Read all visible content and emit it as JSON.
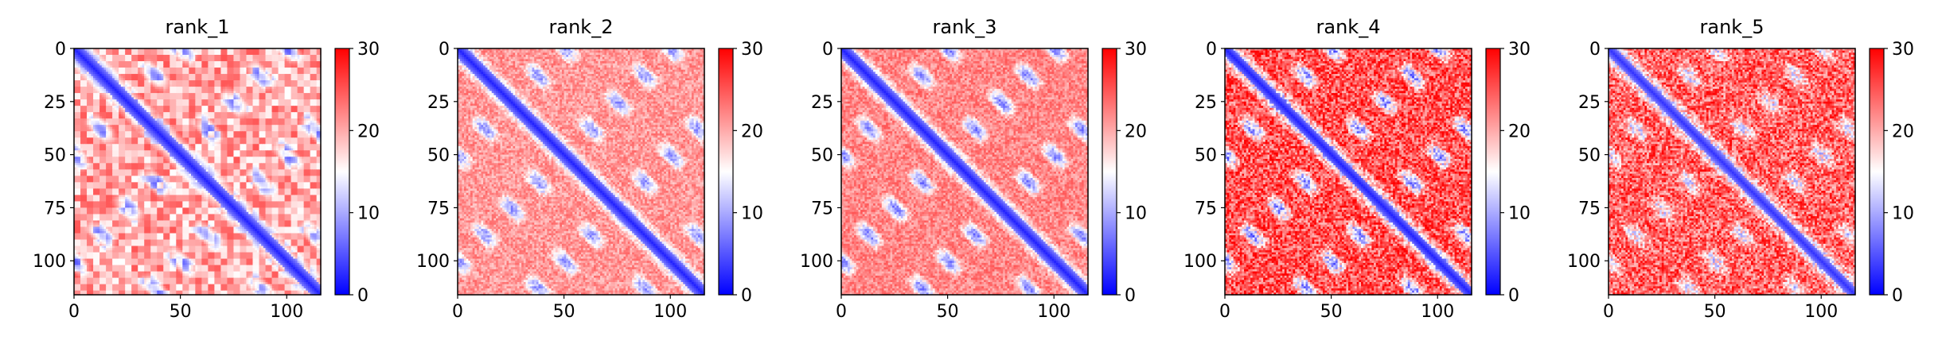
{
  "figure": {
    "panels": [
      {
        "title": "rank_1"
      },
      {
        "title": "rank_2"
      },
      {
        "title": "rank_3"
      },
      {
        "title": "rank_4"
      },
      {
        "title": "rank_5"
      }
    ]
  },
  "chart_data": [
    {
      "type": "heatmap",
      "title": "rank_1",
      "xlabel": "",
      "ylabel": "",
      "matrix_size": 116,
      "xlim": [
        0,
        116
      ],
      "ylim": [
        116,
        0
      ],
      "xticks": [
        0,
        50,
        100
      ],
      "yticks": [
        0,
        25,
        50,
        75,
        100
      ],
      "colorbar": {
        "min": 0,
        "max": 30,
        "ticks": [
          0,
          10,
          20,
          30
        ]
      },
      "colormap": "bwr",
      "colors": {
        "low": "#0000ff",
        "mid": "#ffffff",
        "high": "#ff0000"
      },
      "pattern": {
        "diagonal_value": 2,
        "diagonal_width": 4,
        "background_value": 20,
        "offdiag_blob_value": 10,
        "blob_period": 25,
        "texture": "blocky"
      }
    },
    {
      "type": "heatmap",
      "title": "rank_2",
      "xlabel": "",
      "ylabel": "",
      "matrix_size": 116,
      "xlim": [
        0,
        116
      ],
      "ylim": [
        116,
        0
      ],
      "xticks": [
        0,
        50,
        100
      ],
      "yticks": [
        0,
        25,
        50,
        75,
        100
      ],
      "colorbar": {
        "min": 0,
        "max": 30,
        "ticks": [
          0,
          10,
          20,
          30
        ]
      },
      "colormap": "bwr",
      "colors": {
        "low": "#0000ff",
        "mid": "#ffffff",
        "high": "#ff0000"
      },
      "pattern": {
        "diagonal_value": 2,
        "diagonal_width": 4,
        "background_value": 21,
        "offdiag_blob_value": 9,
        "blob_period": 25,
        "texture": "smooth"
      }
    },
    {
      "type": "heatmap",
      "title": "rank_3",
      "xlabel": "",
      "ylabel": "",
      "matrix_size": 116,
      "xlim": [
        0,
        116
      ],
      "ylim": [
        116,
        0
      ],
      "xticks": [
        0,
        50,
        100
      ],
      "yticks": [
        0,
        25,
        50,
        75,
        100
      ],
      "colorbar": {
        "min": 0,
        "max": 30,
        "ticks": [
          0,
          10,
          20,
          30
        ]
      },
      "colormap": "bwr",
      "colors": {
        "low": "#0000ff",
        "mid": "#ffffff",
        "high": "#ff0000"
      },
      "pattern": {
        "diagonal_value": 2,
        "diagonal_width": 4,
        "background_value": 22,
        "offdiag_blob_value": 8,
        "blob_period": 25,
        "texture": "smooth"
      }
    },
    {
      "type": "heatmap",
      "title": "rank_4",
      "xlabel": "",
      "ylabel": "",
      "matrix_size": 116,
      "xlim": [
        0,
        116
      ],
      "ylim": [
        116,
        0
      ],
      "xticks": [
        0,
        50,
        100
      ],
      "yticks": [
        0,
        25,
        50,
        75,
        100
      ],
      "colorbar": {
        "min": 0,
        "max": 30,
        "ticks": [
          0,
          10,
          20,
          30
        ]
      },
      "colormap": "bwr",
      "colors": {
        "low": "#0000ff",
        "mid": "#ffffff",
        "high": "#ff0000"
      },
      "pattern": {
        "diagonal_value": 2,
        "diagonal_width": 3,
        "background_value": 25,
        "offdiag_blob_value": 9,
        "blob_period": 25,
        "texture": "speckled"
      }
    },
    {
      "type": "heatmap",
      "title": "rank_5",
      "xlabel": "",
      "ylabel": "",
      "matrix_size": 116,
      "xlim": [
        0,
        116
      ],
      "ylim": [
        116,
        0
      ],
      "xticks": [
        0,
        50,
        100
      ],
      "yticks": [
        0,
        25,
        50,
        75,
        100
      ],
      "colorbar": {
        "min": 0,
        "max": 30,
        "ticks": [
          0,
          10,
          20,
          30
        ]
      },
      "colormap": "bwr",
      "colors": {
        "low": "#0000ff",
        "mid": "#ffffff",
        "high": "#ff0000"
      },
      "pattern": {
        "diagonal_value": 3,
        "diagonal_width": 3,
        "background_value": 24,
        "offdiag_blob_value": 14,
        "blob_period": 25,
        "texture": "speckled"
      }
    }
  ]
}
